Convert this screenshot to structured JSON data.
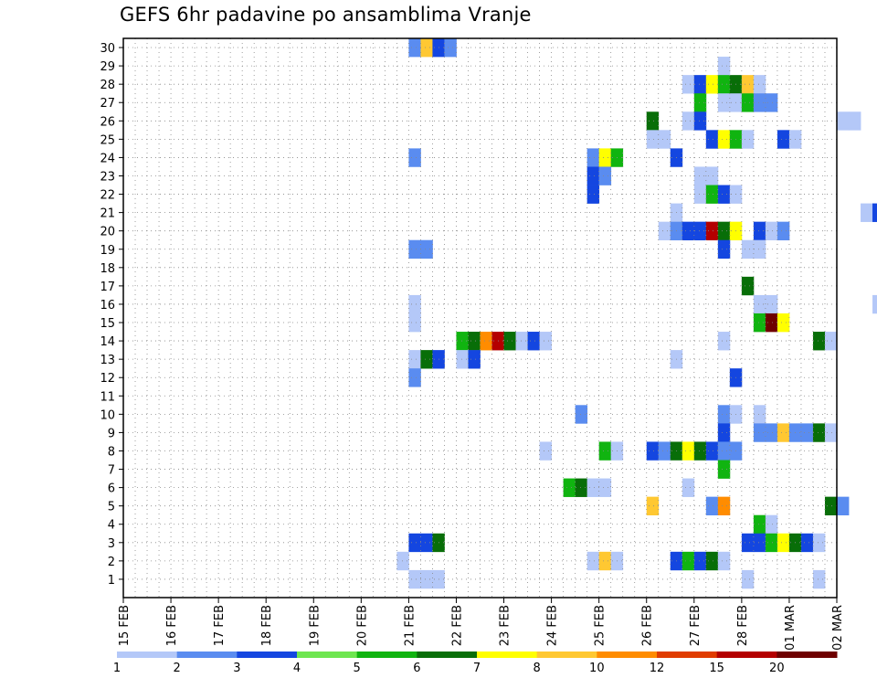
{
  "title": "GEFS 6hr padavine po ansamblima Vranje",
  "chart_data": {
    "type": "heatmap",
    "title": "GEFS 6hr padavine po ansamblima Vranje",
    "y_ticks": [
      "1",
      "2",
      "3",
      "4",
      "5",
      "6",
      "7",
      "8",
      "9",
      "10",
      "11",
      "12",
      "13",
      "14",
      "15",
      "16",
      "17",
      "18",
      "19",
      "20",
      "21",
      "22",
      "23",
      "24",
      "25",
      "26",
      "27",
      "28",
      "29",
      "30"
    ],
    "x_ticks": [
      "15 FEB",
      "16 FEB",
      "17 FEB",
      "18 FEB",
      "19 FEB",
      "20 FEB",
      "21 FEB",
      "22 FEB",
      "23 FEB",
      "24 FEB",
      "25 FEB",
      "26 FEB",
      "27 FEB",
      "28 FEB",
      "01 MAR",
      "02 MAR"
    ],
    "legend": {
      "labels": [
        "1",
        "2",
        "3",
        "4",
        "5",
        "6",
        "7",
        "8",
        "10",
        "12",
        "15",
        "20"
      ],
      "colors": [
        "#b4c8f8",
        "#5a8cf0",
        "#1446e0",
        "#6ee650",
        "#10b410",
        "#086e08",
        "#ffff00",
        "#ffc832",
        "#ff8c00",
        "#e03c00",
        "#b40000",
        "#6e0000"
      ]
    },
    "grid": true,
    "cells": [
      {
        "x": "2/21 00",
        "y": 30,
        "v": 2
      },
      {
        "x": "2/21 06",
        "y": 30,
        "v": 8
      },
      {
        "x": "2/21 12",
        "y": 30,
        "v": 3
      },
      {
        "x": "2/21 18",
        "y": 30,
        "v": 2
      },
      {
        "x": "2/27 12",
        "y": 29,
        "v": 1
      },
      {
        "x": "2/26 18",
        "y": 28,
        "v": 1
      },
      {
        "x": "2/27 00",
        "y": 28,
        "v": 3
      },
      {
        "x": "2/27 06",
        "y": 28,
        "v": 7
      },
      {
        "x": "2/27 12",
        "y": 28,
        "v": 5
      },
      {
        "x": "2/27 18",
        "y": 28,
        "v": 6
      },
      {
        "x": "2/28 00",
        "y": 28,
        "v": 8
      },
      {
        "x": "2/28 06",
        "y": 28,
        "v": 1
      },
      {
        "x": "2/27 00",
        "y": 27,
        "v": 5
      },
      {
        "x": "2/27 12",
        "y": 27,
        "v": 1
      },
      {
        "x": "2/27 18",
        "y": 27,
        "v": 1
      },
      {
        "x": "2/28 00",
        "y": 27,
        "v": 5
      },
      {
        "x": "2/28 06",
        "y": 27,
        "v": 2
      },
      {
        "x": "2/28 12",
        "y": 27,
        "v": 2
      },
      {
        "x": "2/26 00",
        "y": 26,
        "v": 6
      },
      {
        "x": "2/26 18",
        "y": 26,
        "v": 1
      },
      {
        "x": "2/27 00",
        "y": 26,
        "v": 3
      },
      {
        "x": "3/02 00",
        "y": 26,
        "v": 1
      },
      {
        "x": "3/02 06",
        "y": 26,
        "v": 1
      },
      {
        "x": "2/26 00",
        "y": 25,
        "v": 1
      },
      {
        "x": "2/26 06",
        "y": 25,
        "v": 1
      },
      {
        "x": "2/27 06",
        "y": 25,
        "v": 3
      },
      {
        "x": "2/27 12",
        "y": 25,
        "v": 7
      },
      {
        "x": "2/27 18",
        "y": 25,
        "v": 5
      },
      {
        "x": "2/28 00",
        "y": 25,
        "v": 1
      },
      {
        "x": "2/28 18",
        "y": 25,
        "v": 3
      },
      {
        "x": "3/01 00",
        "y": 25,
        "v": 1
      },
      {
        "x": "2/21 00",
        "y": 24,
        "v": 2
      },
      {
        "x": "2/24 18",
        "y": 24,
        "v": 2
      },
      {
        "x": "2/25 00",
        "y": 24,
        "v": 7
      },
      {
        "x": "2/25 06",
        "y": 24,
        "v": 5
      },
      {
        "x": "2/26 12",
        "y": 24,
        "v": 3
      },
      {
        "x": "2/24 18",
        "y": 23,
        "v": 3
      },
      {
        "x": "2/25 00",
        "y": 23,
        "v": 2
      },
      {
        "x": "2/27 00",
        "y": 23,
        "v": 1
      },
      {
        "x": "2/27 06",
        "y": 23,
        "v": 1
      },
      {
        "x": "2/24 18",
        "y": 22,
        "v": 3
      },
      {
        "x": "2/27 00",
        "y": 22,
        "v": 1
      },
      {
        "x": "2/27 06",
        "y": 22,
        "v": 5
      },
      {
        "x": "2/27 12",
        "y": 22,
        "v": 3
      },
      {
        "x": "2/27 18",
        "y": 22,
        "v": 1
      },
      {
        "x": "2/26 12",
        "y": 21,
        "v": 1
      },
      {
        "x": "3/02 12",
        "y": 21,
        "v": 1
      },
      {
        "x": "3/02 18",
        "y": 21,
        "v": 3
      },
      {
        "x": "2/26 06",
        "y": 20,
        "v": 1
      },
      {
        "x": "2/26 12",
        "y": 20,
        "v": 2
      },
      {
        "x": "2/26 18",
        "y": 20,
        "v": 3
      },
      {
        "x": "2/27 00",
        "y": 20,
        "v": 3
      },
      {
        "x": "2/27 06",
        "y": 20,
        "v": 15
      },
      {
        "x": "2/27 12",
        "y": 20,
        "v": 6
      },
      {
        "x": "2/27 18",
        "y": 20,
        "v": 7
      },
      {
        "x": "2/28 06",
        "y": 20,
        "v": 3
      },
      {
        "x": "2/28 12",
        "y": 20,
        "v": 1
      },
      {
        "x": "2/28 18",
        "y": 20,
        "v": 2
      },
      {
        "x": "2/21 00",
        "y": 19,
        "v": 2
      },
      {
        "x": "2/21 06",
        "y": 19,
        "v": 2
      },
      {
        "x": "2/27 12",
        "y": 19,
        "v": 3
      },
      {
        "x": "2/28 00",
        "y": 19,
        "v": 1
      },
      {
        "x": "2/28 06",
        "y": 19,
        "v": 1
      },
      {
        "x": "2/28 00",
        "y": 17,
        "v": 6
      },
      {
        "x": "2/21 00",
        "y": 16,
        "v": 1
      },
      {
        "x": "2/28 06",
        "y": 16,
        "v": 1
      },
      {
        "x": "2/28 12",
        "y": 16,
        "v": 1
      },
      {
        "x": "3/02 18",
        "y": 16,
        "v": 1
      },
      {
        "x": "2/21 00",
        "y": 15,
        "v": 1
      },
      {
        "x": "2/28 06",
        "y": 15,
        "v": 5
      },
      {
        "x": "2/28 12",
        "y": 15,
        "v": 20
      },
      {
        "x": "2/28 18",
        "y": 15,
        "v": 7
      },
      {
        "x": "2/22 00",
        "y": 14,
        "v": 5
      },
      {
        "x": "2/22 06",
        "y": 14,
        "v": 6
      },
      {
        "x": "2/22 12",
        "y": 14,
        "v": 10
      },
      {
        "x": "2/22 18",
        "y": 14,
        "v": 15
      },
      {
        "x": "2/23 00",
        "y": 14,
        "v": 6
      },
      {
        "x": "2/23 06",
        "y": 14,
        "v": 1
      },
      {
        "x": "2/23 12",
        "y": 14,
        "v": 3
      },
      {
        "x": "2/23 18",
        "y": 14,
        "v": 1
      },
      {
        "x": "2/27 12",
        "y": 14,
        "v": 1
      },
      {
        "x": "3/01 12",
        "y": 14,
        "v": 6
      },
      {
        "x": "3/01 18",
        "y": 14,
        "v": 1
      },
      {
        "x": "2/21 00",
        "y": 13,
        "v": 1
      },
      {
        "x": "2/21 06",
        "y": 13,
        "v": 6
      },
      {
        "x": "2/21 12",
        "y": 13,
        "v": 3
      },
      {
        "x": "2/22 00",
        "y": 13,
        "v": 1
      },
      {
        "x": "2/22 06",
        "y": 13,
        "v": 3
      },
      {
        "x": "2/26 12",
        "y": 13,
        "v": 1
      },
      {
        "x": "2/21 00",
        "y": 12,
        "v": 2
      },
      {
        "x": "2/27 18",
        "y": 12,
        "v": 3
      },
      {
        "x": "2/24 12",
        "y": 10,
        "v": 2
      },
      {
        "x": "2/27 12",
        "y": 10,
        "v": 2
      },
      {
        "x": "2/27 18",
        "y": 10,
        "v": 1
      },
      {
        "x": "2/28 06",
        "y": 10,
        "v": 1
      },
      {
        "x": "2/27 12",
        "y": 9,
        "v": 3
      },
      {
        "x": "2/28 06",
        "y": 9,
        "v": 2
      },
      {
        "x": "2/28 12",
        "y": 9,
        "v": 2
      },
      {
        "x": "2/28 18",
        "y": 9,
        "v": 8
      },
      {
        "x": "3/01 00",
        "y": 9,
        "v": 2
      },
      {
        "x": "3/01 06",
        "y": 9,
        "v": 2
      },
      {
        "x": "3/01 12",
        "y": 9,
        "v": 6
      },
      {
        "x": "3/01 18",
        "y": 9,
        "v": 1
      },
      {
        "x": "2/23 18",
        "y": 8,
        "v": 1
      },
      {
        "x": "2/25 00",
        "y": 8,
        "v": 5
      },
      {
        "x": "2/25 06",
        "y": 8,
        "v": 1
      },
      {
        "x": "2/26 00",
        "y": 8,
        "v": 3
      },
      {
        "x": "2/26 06",
        "y": 8,
        "v": 2
      },
      {
        "x": "2/26 12",
        "y": 8,
        "v": 6
      },
      {
        "x": "2/26 18",
        "y": 8,
        "v": 7
      },
      {
        "x": "2/27 00",
        "y": 8,
        "v": 6
      },
      {
        "x": "2/27 06",
        "y": 8,
        "v": 3
      },
      {
        "x": "2/27 12",
        "y": 8,
        "v": 2
      },
      {
        "x": "2/27 18",
        "y": 8,
        "v": 2
      },
      {
        "x": "2/27 12",
        "y": 7,
        "v": 5
      },
      {
        "x": "2/24 06",
        "y": 6,
        "v": 5
      },
      {
        "x": "2/24 12",
        "y": 6,
        "v": 6
      },
      {
        "x": "2/24 18",
        "y": 6,
        "v": 1
      },
      {
        "x": "2/25 00",
        "y": 6,
        "v": 1
      },
      {
        "x": "2/26 18",
        "y": 6,
        "v": 1
      },
      {
        "x": "2/26 00",
        "y": 5,
        "v": 8
      },
      {
        "x": "2/27 06",
        "y": 5,
        "v": 2
      },
      {
        "x": "2/27 12",
        "y": 5,
        "v": 10
      },
      {
        "x": "3/01 18",
        "y": 5,
        "v": 6
      },
      {
        "x": "3/02 00",
        "y": 5,
        "v": 2
      },
      {
        "x": "2/28 06",
        "y": 4,
        "v": 5
      },
      {
        "x": "2/28 12",
        "y": 4,
        "v": 1
      },
      {
        "x": "2/21 00",
        "y": 3,
        "v": 3
      },
      {
        "x": "2/21 06",
        "y": 3,
        "v": 3
      },
      {
        "x": "2/21 12",
        "y": 3,
        "v": 6
      },
      {
        "x": "2/28 00",
        "y": 3,
        "v": 3
      },
      {
        "x": "2/28 06",
        "y": 3,
        "v": 3
      },
      {
        "x": "2/28 12",
        "y": 3,
        "v": 5
      },
      {
        "x": "2/28 18",
        "y": 3,
        "v": 7
      },
      {
        "x": "3/01 00",
        "y": 3,
        "v": 6
      },
      {
        "x": "3/01 06",
        "y": 3,
        "v": 3
      },
      {
        "x": "3/01 12",
        "y": 3,
        "v": 1
      },
      {
        "x": "2/20 18",
        "y": 2,
        "v": 1
      },
      {
        "x": "2/24 18",
        "y": 2,
        "v": 1
      },
      {
        "x": "2/25 00",
        "y": 2,
        "v": 8
      },
      {
        "x": "2/25 06",
        "y": 2,
        "v": 1
      },
      {
        "x": "2/26 12",
        "y": 2,
        "v": 3
      },
      {
        "x": "2/26 18",
        "y": 2,
        "v": 5
      },
      {
        "x": "2/27 00",
        "y": 2,
        "v": 3
      },
      {
        "x": "2/27 06",
        "y": 2,
        "v": 6
      },
      {
        "x": "2/27 12",
        "y": 2,
        "v": 1
      },
      {
        "x": "2/21 00",
        "y": 1,
        "v": 1
      },
      {
        "x": "2/21 06",
        "y": 1,
        "v": 1
      },
      {
        "x": "2/21 12",
        "y": 1,
        "v": 1
      },
      {
        "x": "2/28 00",
        "y": 1,
        "v": 1
      },
      {
        "x": "3/01 12",
        "y": 1,
        "v": 1
      }
    ]
  }
}
